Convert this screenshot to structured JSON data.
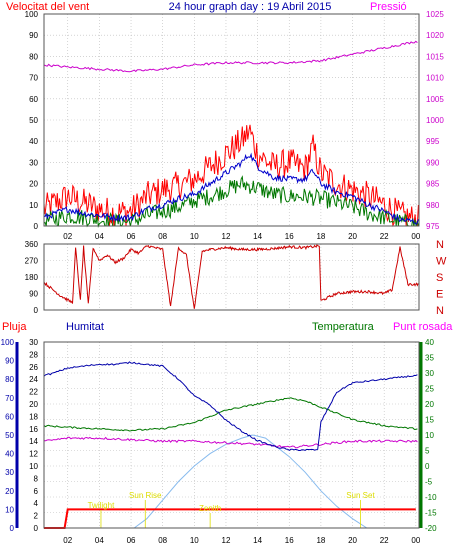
{
  "header": {
    "left": "Velocitat del vent",
    "center": "24 hour graph day : 19 Abril 2015",
    "right": "Pressió"
  },
  "colors": {
    "wind": "#ff0000",
    "wind_avg": "#0000cc",
    "wind_min": "#007700",
    "pressure": "#cc00cc",
    "direction": "#cc0000",
    "rain": "#ff0000",
    "humidity": "#0000aa",
    "temperature": "#007700",
    "dewpoint": "#cc00cc",
    "sun": "#88bbee",
    "sun_labels": "#dddd00",
    "left_title": "#ff0000",
    "right_title": "#ff00ff",
    "center_title": "#0000aa",
    "bottom_hum_title": "#0000aa",
    "bottom_temp_title": "#007700",
    "bottom_dew_title": "#ff00ff"
  },
  "x_ticks": [
    "02",
    "04",
    "06",
    "08",
    "10",
    "12",
    "14",
    "16",
    "18",
    "20",
    "22",
    "00"
  ],
  "top_left_ticks": [
    "100",
    "90",
    "80",
    "70",
    "60",
    "50",
    "40",
    "30",
    "20",
    "10",
    "0"
  ],
  "top_right_ticks": [
    "1025",
    "1020",
    "1015",
    "1010",
    "1005",
    "1000",
    "995",
    "990",
    "985",
    "980",
    "975"
  ],
  "dir_ticks": [
    "360",
    "270",
    "180",
    "90",
    "0"
  ],
  "dir_letters": [
    "N",
    "W",
    "S",
    "E",
    "N"
  ],
  "bottom_titles": {
    "rain": "Pluja",
    "humidity": "Humitat",
    "temperature": "Temperatura",
    "dewpoint": "Punt rosada"
  },
  "hum_ticks": [
    "100",
    "90",
    "80",
    "70",
    "60",
    "50",
    "40",
    "30",
    "20",
    "10",
    "0"
  ],
  "rain_ticks": [
    "30",
    "28",
    "26",
    "24",
    "22",
    "20",
    "18",
    "16",
    "14",
    "12",
    "10",
    "8",
    "6",
    "4",
    "2",
    "0"
  ],
  "temp_ticks": [
    "40",
    "35",
    "30",
    "25",
    "20",
    "15",
    "10",
    "5",
    "0",
    "-5",
    "-10",
    "-15",
    "-20"
  ],
  "sun_labels": {
    "twilight": "Twilight",
    "rise": "Sun Rise",
    "zenith": "Zenith",
    "set": "Sun Set"
  },
  "chart_data": [
    {
      "type": "line",
      "title": "24 hour graph day : 19 Abril 2015",
      "x_unit": "hour",
      "x_range": [
        0.5,
        24.2
      ],
      "ylabel": "Velocitat del vent",
      "ylim": [
        0,
        100
      ],
      "y2label": "Pressió",
      "y2lim": [
        975,
        1025
      ],
      "series": [
        {
          "key": "gust",
          "x": [
            0.5,
            2,
            3,
            4,
            5,
            6,
            7,
            8,
            9,
            10,
            11,
            12,
            13,
            13.5,
            14,
            15,
            16,
            17,
            17.5,
            18,
            19,
            20,
            21,
            22,
            23,
            24
          ],
          "values": [
            8,
            14,
            11,
            8,
            6,
            7,
            14,
            17,
            19,
            22,
            28,
            34,
            40,
            45,
            34,
            28,
            30,
            27,
            37,
            25,
            20,
            17,
            14,
            10,
            5,
            3
          ]
        },
        {
          "key": "average",
          "x": [
            0.5,
            2,
            3,
            4,
            5,
            6,
            7,
            8,
            9,
            10,
            11,
            12,
            13,
            13.5,
            14,
            15,
            16,
            17,
            17.5,
            18,
            19,
            20,
            21,
            22,
            23,
            24
          ],
          "values": [
            4,
            8,
            6,
            5,
            4,
            4,
            8,
            10,
            13,
            15,
            20,
            25,
            30,
            34,
            28,
            23,
            22,
            22,
            26,
            20,
            16,
            14,
            10,
            7,
            3,
            2
          ]
        },
        {
          "key": "minimum",
          "x": [
            0.5,
            2,
            3,
            4,
            5,
            6,
            7,
            8,
            9,
            10,
            11,
            12,
            13,
            14,
            15,
            16,
            17,
            18,
            19,
            20,
            21,
            22,
            23,
            24
          ],
          "values": [
            2,
            5,
            4,
            3,
            2,
            2,
            5,
            7,
            9,
            12,
            14,
            17,
            20,
            18,
            15,
            14,
            14,
            13,
            11,
            9,
            6,
            4,
            2,
            1
          ]
        },
        {
          "key": "pressure",
          "axis": "y2",
          "x": [
            0.5,
            2,
            4,
            6,
            8,
            10,
            12,
            14,
            16,
            18,
            20,
            22,
            24
          ],
          "values": [
            1013,
            1012.5,
            1012,
            1011.5,
            1012,
            1013,
            1013.5,
            1013.5,
            1013.5,
            1014,
            1015.5,
            1017,
            1018.5
          ]
        }
      ]
    },
    {
      "type": "line",
      "x_unit": "hour",
      "ylim": [
        0,
        360
      ],
      "series": [
        {
          "key": "direction",
          "x": [
            0.5,
            1.5,
            2.3,
            2.5,
            2.8,
            3,
            3.3,
            3.6,
            4,
            4.5,
            5,
            5.5,
            6,
            6.5,
            7,
            7.5,
            8,
            8.5,
            9,
            9.5,
            10,
            10.5,
            11,
            12,
            13,
            14,
            15,
            16,
            17,
            17.9,
            18,
            19,
            20,
            21,
            22,
            22.5,
            23,
            23.5,
            24
          ],
          "values": [
            150,
            80,
            40,
            340,
            50,
            345,
            30,
            340,
            270,
            300,
            260,
            280,
            330,
            310,
            350,
            340,
            330,
            20,
            340,
            300,
            5,
            320,
            330,
            340,
            330,
            330,
            335,
            345,
            340,
            350,
            50,
            90,
            100,
            100,
            90,
            110,
            340,
            140,
            140
          ]
        }
      ]
    },
    {
      "type": "line",
      "x_unit": "hour",
      "ylabel": "Humitat",
      "ylim": [
        0,
        100
      ],
      "y_rain": [
        0,
        30
      ],
      "y_temp": [
        -20,
        40
      ],
      "series": [
        {
          "key": "rain",
          "axis": "rain",
          "x": [
            0.5,
            1.8,
            2,
            24
          ],
          "values": [
            0,
            0,
            3,
            3
          ]
        },
        {
          "key": "humidity",
          "x": [
            0.5,
            1,
            2,
            3,
            4,
            5,
            6,
            7,
            8,
            9,
            10,
            11,
            12,
            13,
            14,
            15,
            16,
            17,
            17.8,
            18,
            19,
            20,
            21,
            22,
            23,
            24
          ],
          "values": [
            82,
            83,
            86,
            87,
            88,
            88,
            89,
            88,
            87,
            80,
            71,
            66,
            58,
            52,
            47,
            44,
            42,
            42,
            42,
            57,
            73,
            78,
            79,
            80,
            81,
            82
          ]
        },
        {
          "key": "temperature",
          "axis": "temp",
          "x": [
            0.5,
            2,
            4,
            6,
            8,
            10,
            12,
            14,
            16,
            17,
            18,
            20,
            22,
            24
          ],
          "values": [
            13,
            12.5,
            12,
            11.5,
            12,
            14,
            18,
            20,
            22,
            21,
            19,
            15,
            13,
            12
          ]
        },
        {
          "key": "dewpoint",
          "axis": "temp",
          "x": [
            0.5,
            2,
            4,
            6,
            8,
            10,
            12,
            14,
            16,
            18,
            20,
            22,
            24
          ],
          "values": [
            8,
            9,
            9,
            8.5,
            8,
            8,
            7.5,
            7,
            6,
            7,
            8,
            8,
            8
          ]
        },
        {
          "key": "solar",
          "axis": "temp",
          "x": [
            6.2,
            7,
            8,
            9,
            10,
            11,
            12,
            13,
            13.7,
            14.5,
            15,
            16,
            17,
            18,
            19,
            20,
            20.9
          ],
          "values": [
            -20,
            -17,
            -11,
            -5,
            0,
            4,
            7,
            9,
            10,
            9,
            7,
            3,
            -2,
            -8,
            -13,
            -17,
            -20
          ]
        }
      ]
    }
  ]
}
